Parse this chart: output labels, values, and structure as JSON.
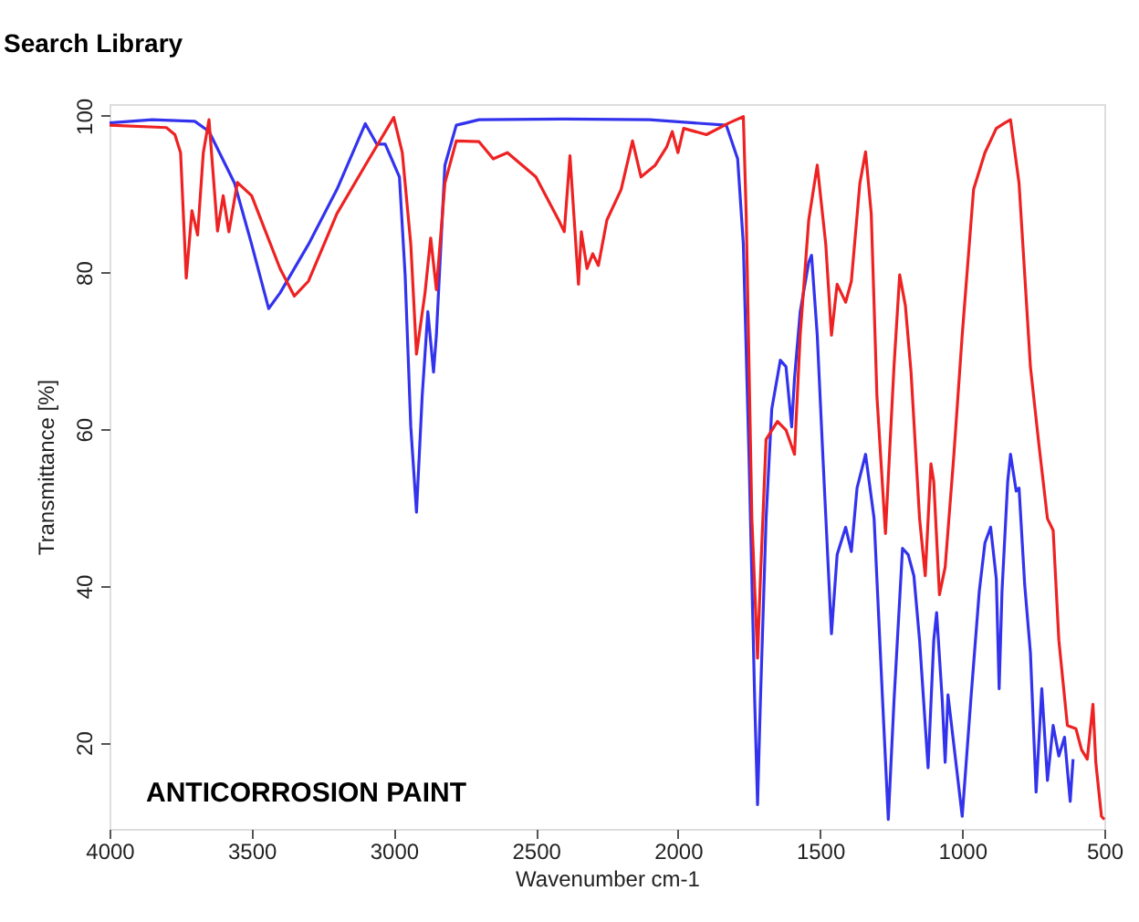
{
  "chart_data": {
    "type": "line",
    "title": "Search Library",
    "xlabel": "Wavenumber cm-1",
    "ylabel": "Transmittance [%]",
    "xlim": [
      4000,
      500
    ],
    "xticks": [
      4000,
      3500,
      3000,
      2500,
      2000,
      1500,
      1000,
      500
    ],
    "ylim": [
      9,
      101.5
    ],
    "yticks": [
      20,
      40,
      60,
      80,
      100
    ],
    "grid": false,
    "legend": false,
    "marker": "none",
    "line_style": "solid",
    "annotations": [
      "ANTICORROSION PAINT"
    ],
    "series": [
      {
        "color": "#3333ee",
        "x": [
          4000,
          3850,
          3700,
          3650,
          3560,
          3500,
          3440,
          3400,
          3300,
          3200,
          3100,
          3060,
          3030,
          2980,
          2960,
          2940,
          2920,
          2900,
          2880,
          2860,
          2850,
          2820,
          2780,
          2700,
          2400,
          2100,
          1830,
          1790,
          1770,
          1750,
          1730,
          1720,
          1710,
          1690,
          1670,
          1640,
          1620,
          1600,
          1590,
          1570,
          1540,
          1530,
          1510,
          1490,
          1460,
          1440,
          1410,
          1390,
          1370,
          1340,
          1310,
          1280,
          1260,
          1240,
          1210,
          1190,
          1170,
          1150,
          1120,
          1100,
          1090,
          1070,
          1060,
          1050,
          1030,
          1000,
          970,
          940,
          920,
          900,
          880,
          870,
          860,
          840,
          830,
          810,
          800,
          780,
          760,
          740,
          720,
          700,
          680,
          660,
          640,
          620,
          610
        ],
        "values": [
          99.1,
          99.5,
          99.3,
          98,
          91.4,
          83.6,
          75.4,
          77.4,
          83.6,
          90.6,
          99,
          96.4,
          96.4,
          92.2,
          79.7,
          60.3,
          49.4,
          64.2,
          75,
          67.3,
          72,
          93.7,
          98.8,
          99.5,
          99.6,
          99.5,
          98.8,
          94.5,
          83.6,
          56.4,
          25.3,
          12.1,
          25.3,
          48.6,
          62.6,
          68.8,
          68,
          60.3,
          66.5,
          75,
          81.3,
          82.2,
          72,
          56.4,
          33.9,
          44,
          47.5,
          44.4,
          52.5,
          56.8,
          48.6,
          25.3,
          10.2,
          25.3,
          44.8,
          44,
          41.3,
          33.1,
          16.8,
          33.1,
          36.6,
          25.3,
          17.5,
          26.1,
          19.9,
          10.6,
          25.3,
          39.3,
          45.5,
          47.5,
          40.9,
          26.9,
          39.3,
          53.3,
          56.8,
          52.1,
          52.5,
          40.1,
          31.5,
          13.7,
          26.9,
          15.2,
          22.2,
          18.3,
          20.7,
          12.5,
          17.9
        ]
      },
      {
        "color": "#ee2222",
        "x": [
          4000,
          3800,
          3770,
          3750,
          3730,
          3710,
          3690,
          3670,
          3650,
          3620,
          3600,
          3580,
          3550,
          3500,
          3400,
          3350,
          3300,
          3200,
          3100,
          3000,
          2970,
          2940,
          2920,
          2890,
          2870,
          2850,
          2820,
          2780,
          2700,
          2650,
          2600,
          2500,
          2420,
          2400,
          2380,
          2350,
          2340,
          2320,
          2300,
          2280,
          2250,
          2200,
          2160,
          2130,
          2080,
          2040,
          2020,
          2000,
          1980,
          1900,
          1820,
          1770,
          1760,
          1740,
          1720,
          1710,
          1690,
          1650,
          1620,
          1590,
          1570,
          1540,
          1510,
          1480,
          1460,
          1440,
          1410,
          1390,
          1360,
          1340,
          1320,
          1300,
          1270,
          1240,
          1220,
          1200,
          1180,
          1150,
          1130,
          1110,
          1100,
          1080,
          1060,
          1030,
          1000,
          960,
          920,
          880,
          850,
          830,
          800,
          760,
          730,
          700,
          680,
          660,
          630,
          600,
          580,
          560,
          540,
          530,
          510,
          500
        ],
        "values": [
          98.8,
          98.5,
          97.6,
          95.3,
          79.3,
          87.9,
          84.8,
          95.3,
          99.5,
          85.3,
          89.8,
          85.2,
          91.5,
          89.8,
          80.5,
          77,
          78.9,
          87.5,
          93.7,
          99.8,
          95.3,
          83.6,
          69.6,
          77.4,
          84.4,
          77.8,
          91.4,
          96.8,
          96.7,
          94.5,
          95.3,
          92.2,
          86.7,
          85.2,
          94.9,
          78.5,
          85.2,
          80.5,
          82.4,
          80.9,
          86.7,
          90.6,
          96.8,
          92.2,
          93.7,
          96,
          98,
          95.3,
          98.4,
          97.6,
          99.1,
          99.9,
          87.5,
          48.6,
          30.8,
          40.9,
          58.7,
          61,
          59.9,
          56.8,
          72,
          86.7,
          93.7,
          83.6,
          72,
          78.5,
          76.2,
          78.9,
          91.4,
          95.4,
          87.5,
          64.2,
          46.7,
          68,
          79.7,
          75.8,
          67.3,
          48.6,
          41.3,
          55.6,
          53.3,
          38.9,
          42.4,
          56.4,
          72,
          90.6,
          95.3,
          98.4,
          99.1,
          99.5,
          91.4,
          68,
          58,
          48.6,
          47.1,
          33.1,
          22.2,
          21.8,
          19.1,
          17.9,
          24.9,
          17.5,
          10.6,
          10.2
        ]
      }
    ]
  }
}
